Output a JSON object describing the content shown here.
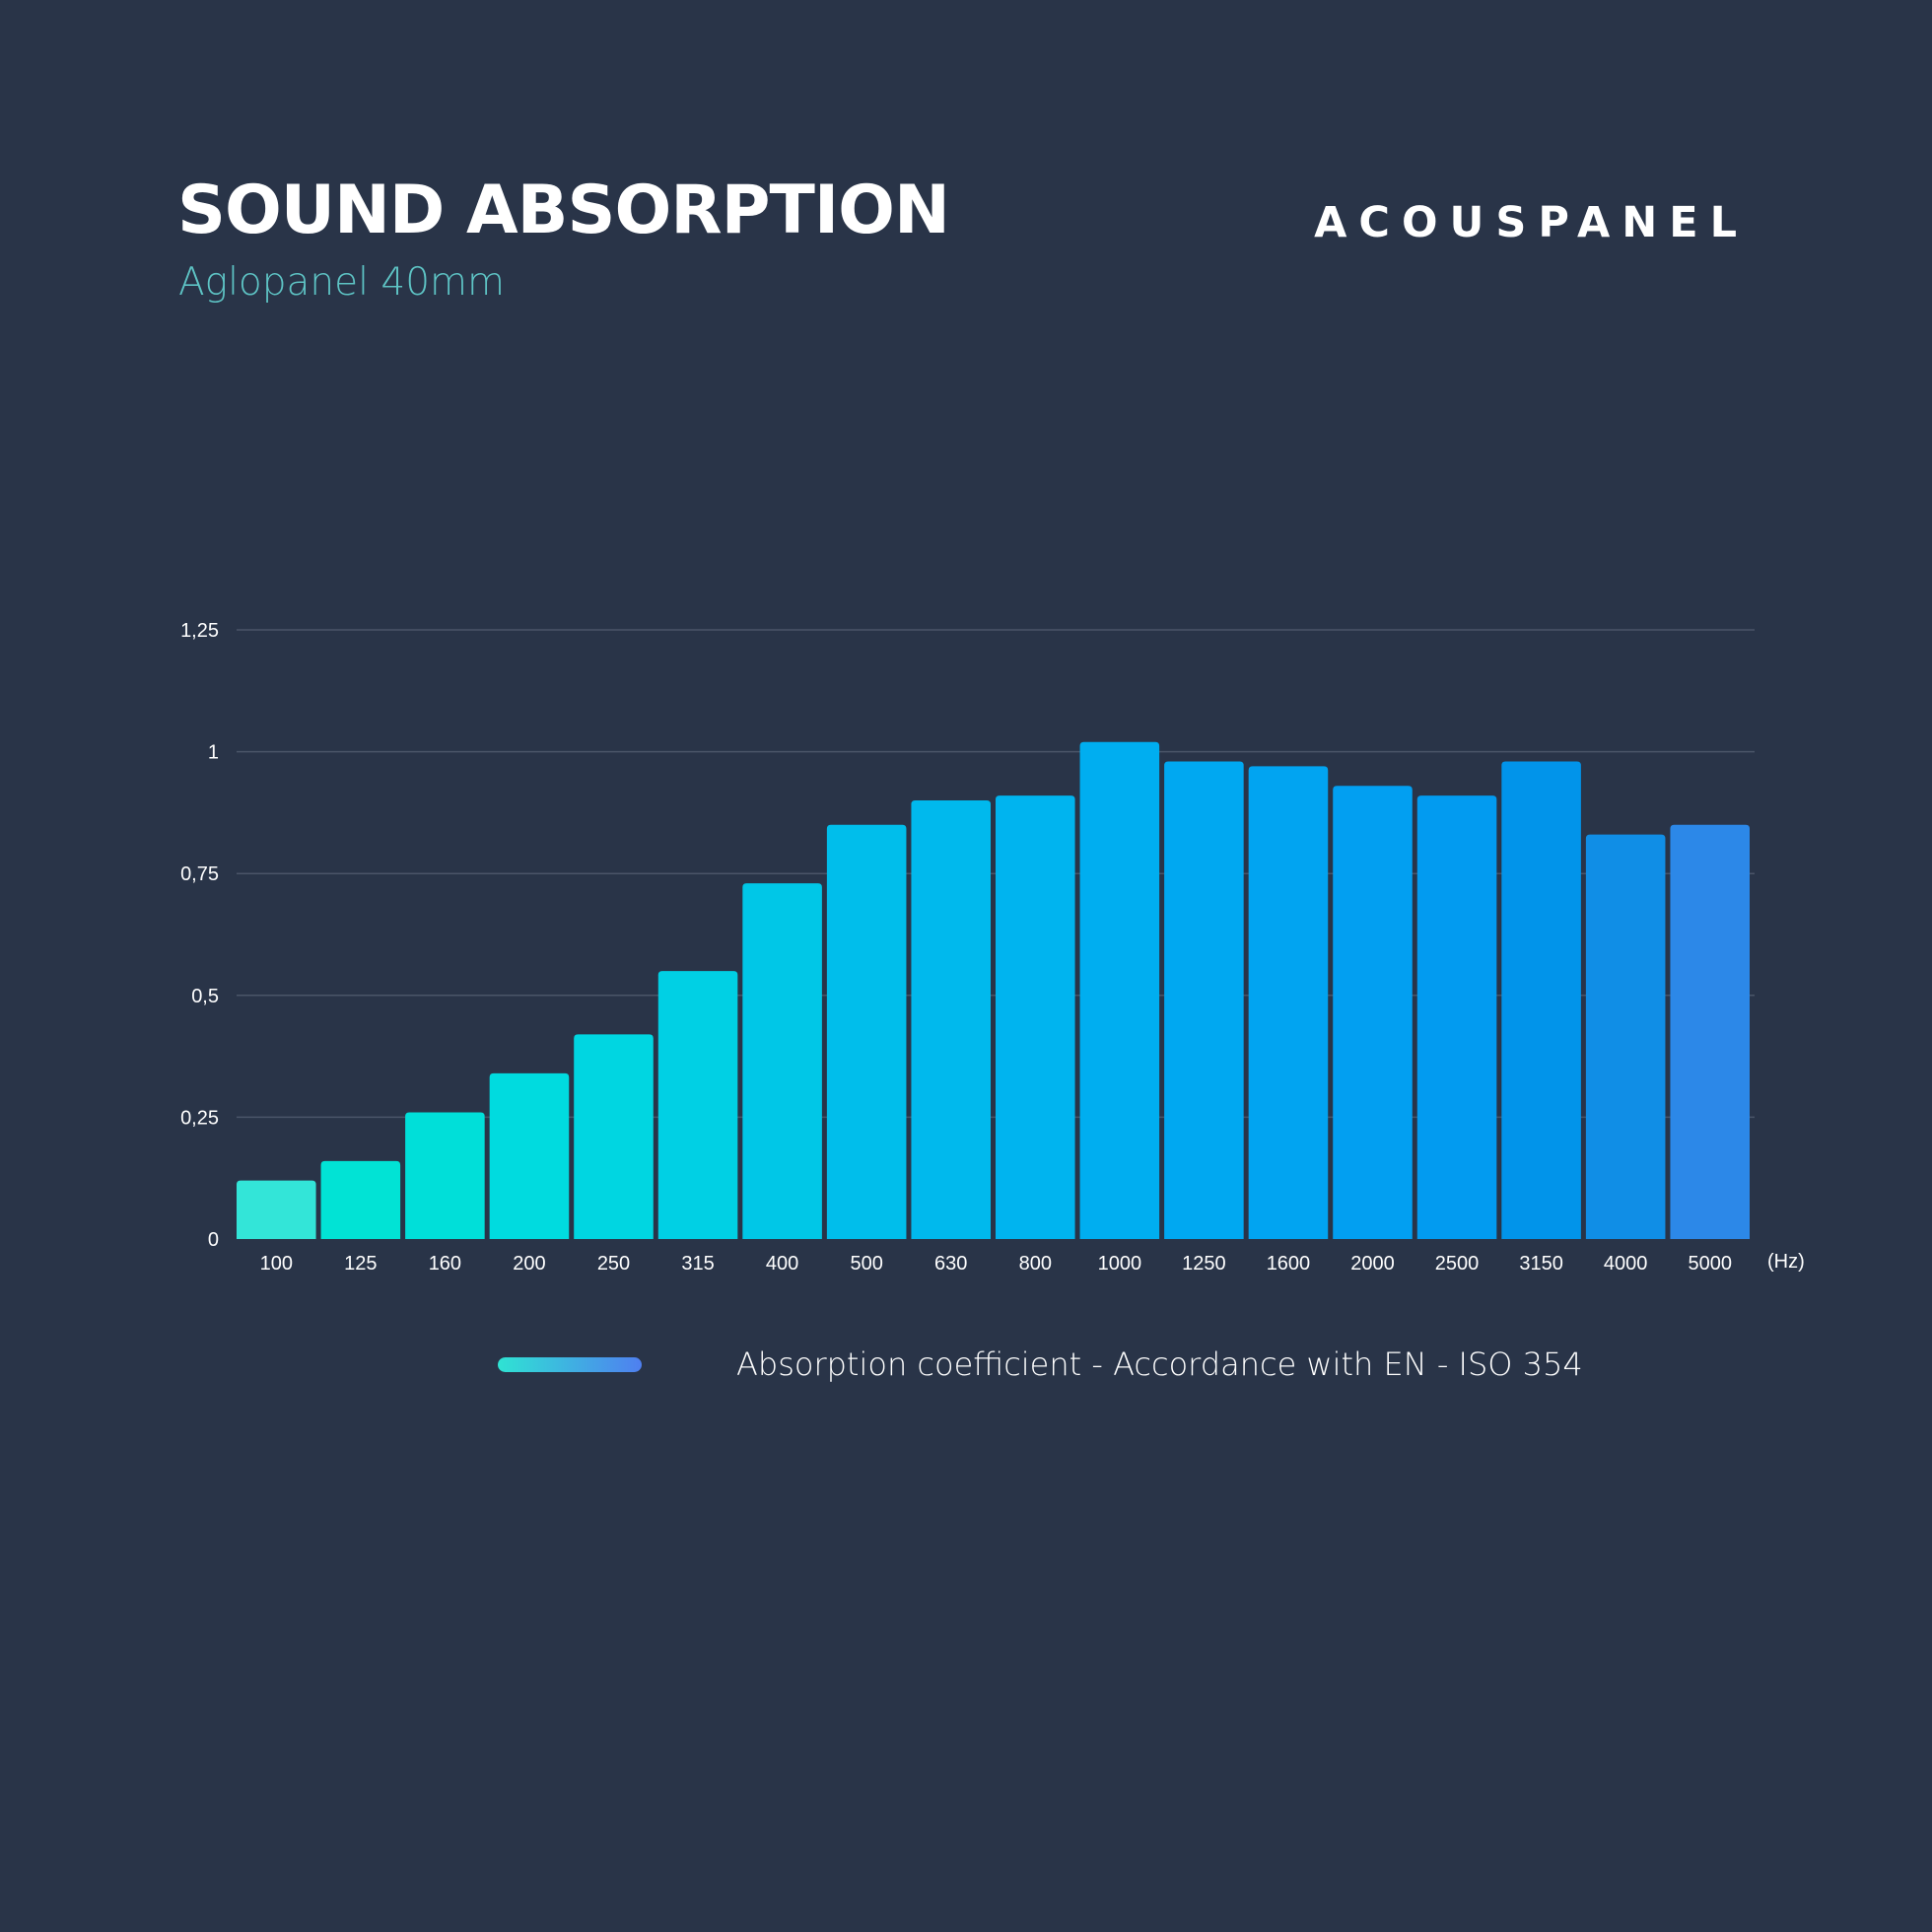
{
  "header": {
    "title": "SOUND ABSORPTION",
    "subtitle": "Aglopanel 40mm",
    "brand": "ACOUSPANEL"
  },
  "chart_data": {
    "type": "bar",
    "title": "SOUND ABSORPTION",
    "subtitle": "Aglopanel 40mm",
    "xlabel": "",
    "x_unit": "(Hz)",
    "ylabel": "",
    "ylim": [
      0,
      1.25
    ],
    "yticks": [
      "0",
      "0,25",
      "0,5",
      "0,75",
      "1",
      "1,25"
    ],
    "grid": true,
    "legend_position": "bottom",
    "categories": [
      "100",
      "125",
      "160",
      "200",
      "250",
      "315",
      "400",
      "500",
      "630",
      "800",
      "1000",
      "1250",
      "1600",
      "2000",
      "2500",
      "3150",
      "4000",
      "5000"
    ],
    "series": [
      {
        "name": "Absorption coefficient - Accordance with EN - ISO 354",
        "values": [
          0.12,
          0.16,
          0.26,
          0.34,
          0.42,
          0.55,
          0.73,
          0.85,
          0.9,
          0.91,
          1.02,
          0.98,
          0.97,
          0.93,
          0.91,
          0.98,
          0.83,
          0.85
        ]
      }
    ],
    "colors": [
      "#33e5d8",
      "#01e3d5",
      "#00dfd9",
      "#00dbdf",
      "#00d6e1",
      "#00d0e4",
      "#00c7e7",
      "#00beeb",
      "#00b9ed",
      "#00b4ef",
      "#00aef0",
      "#00a8f1",
      "#01a4f1",
      "#029ff1",
      "#029bf0",
      "#0194ea",
      "#108ee6",
      "#2c88e8"
    ]
  }
}
